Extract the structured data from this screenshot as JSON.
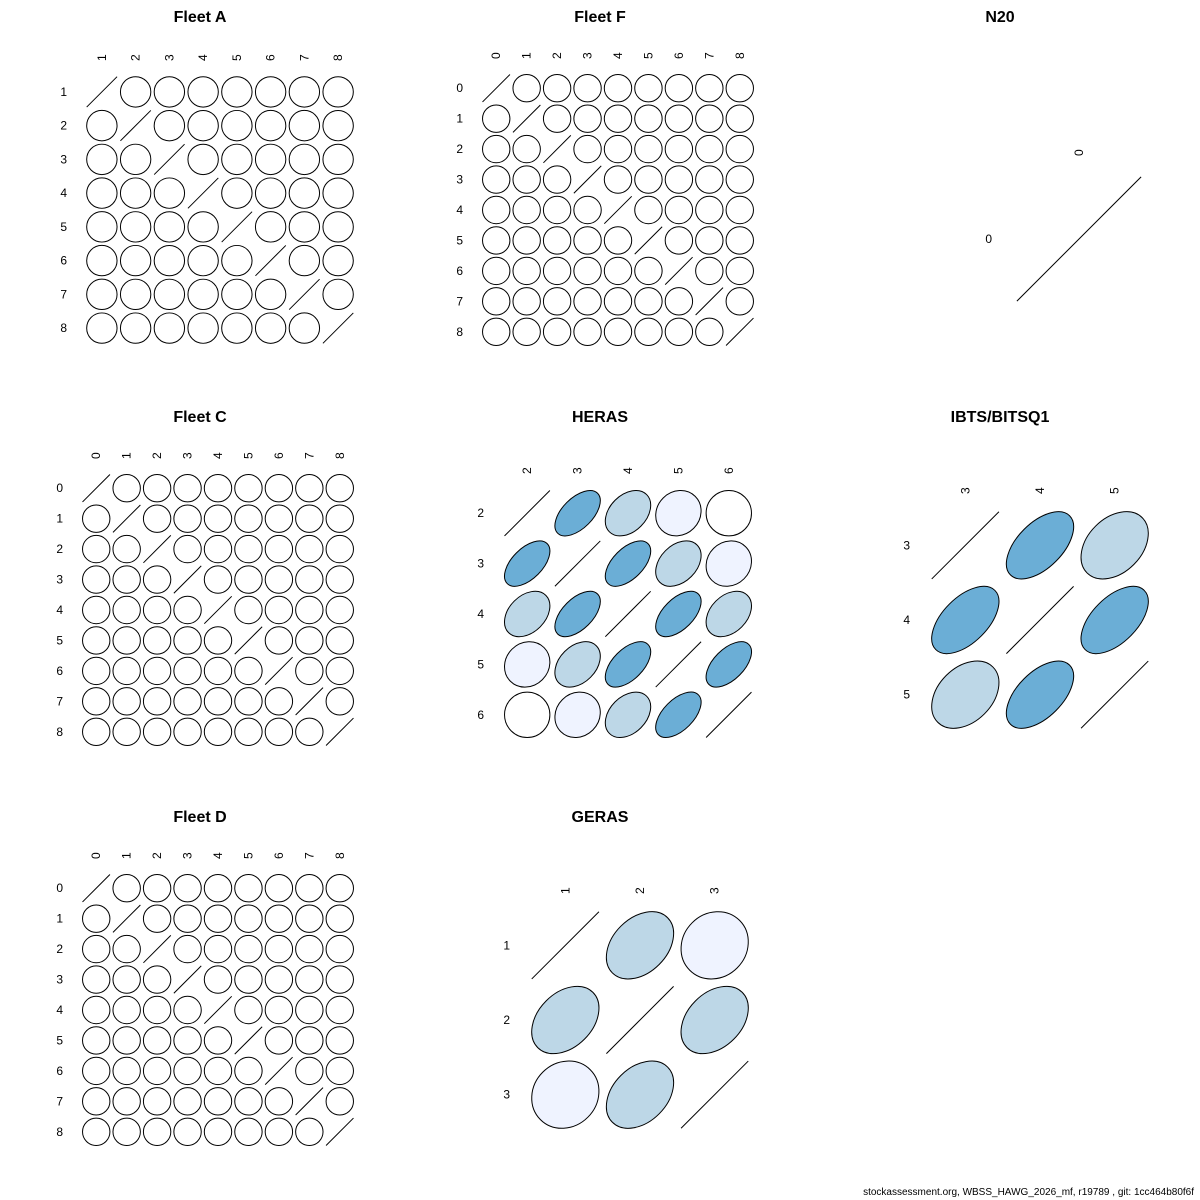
{
  "footer": "stockassessment.org, WBSS_HAWG_2026_mf, r19789 , git: 1cc464b80f6f",
  "chart_data": [
    {
      "type": "heatmap",
      "title": "Fleet A",
      "labels": [
        "1",
        "2",
        "3",
        "4",
        "5",
        "6",
        "7",
        "8"
      ],
      "corr_default": 0.0
    },
    {
      "type": "heatmap",
      "title": "Fleet F",
      "labels": [
        "0",
        "1",
        "2",
        "3",
        "4",
        "5",
        "6",
        "7",
        "8"
      ],
      "corr_default": 0.0
    },
    {
      "type": "heatmap",
      "title": "N20",
      "labels": [
        "0"
      ],
      "corr_default": 0.0
    },
    {
      "type": "heatmap",
      "title": "Fleet C",
      "labels": [
        "0",
        "1",
        "2",
        "3",
        "4",
        "5",
        "6",
        "7",
        "8"
      ],
      "corr_default": 0.0
    },
    {
      "type": "heatmap",
      "title": "HERAS",
      "labels": [
        "2",
        "3",
        "4",
        "5",
        "6"
      ],
      "matrix": [
        [
          1.0,
          0.55,
          0.35,
          0.1,
          0.0
        ],
        [
          0.55,
          1.0,
          0.55,
          0.35,
          0.1
        ],
        [
          0.35,
          0.55,
          1.0,
          0.55,
          0.35
        ],
        [
          0.1,
          0.35,
          0.55,
          1.0,
          0.55
        ],
        [
          0.0,
          0.1,
          0.35,
          0.55,
          1.0
        ]
      ]
    },
    {
      "type": "heatmap",
      "title": "IBTS/BITSQ1",
      "labels": [
        "3",
        "4",
        "5"
      ],
      "matrix": [
        [
          1.0,
          0.55,
          0.35
        ],
        [
          0.55,
          1.0,
          0.55
        ],
        [
          0.35,
          0.55,
          1.0
        ]
      ]
    },
    {
      "type": "heatmap",
      "title": "Fleet D",
      "labels": [
        "0",
        "1",
        "2",
        "3",
        "4",
        "5",
        "6",
        "7",
        "8"
      ],
      "corr_default": 0.0
    },
    {
      "type": "heatmap",
      "title": "GERAS",
      "labels": [
        "1",
        "2",
        "3"
      ],
      "matrix": [
        [
          1.0,
          0.35,
          0.1
        ],
        [
          0.35,
          1.0,
          0.35
        ],
        [
          0.1,
          0.35,
          1.0
        ]
      ]
    }
  ]
}
